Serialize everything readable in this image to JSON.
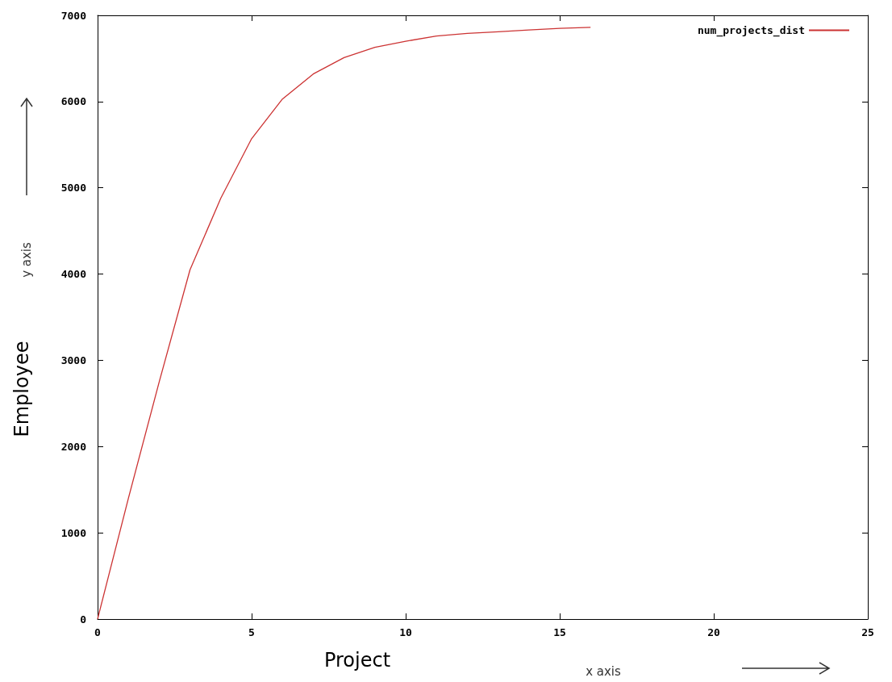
{
  "chart_data": {
    "type": "line",
    "xlabel": "Project",
    "ylabel": "Employee",
    "annotations": [
      "x axis",
      "y axis"
    ],
    "x": [
      0,
      1,
      2,
      3,
      4,
      5,
      6,
      7,
      8,
      9,
      10,
      11,
      12,
      13,
      14,
      15,
      16
    ],
    "series": [
      {
        "name": "num_projects_dist",
        "color": "#cc3333",
        "values": [
          0,
          1400,
          2750,
          4050,
          4880,
          5570,
          6030,
          6320,
          6510,
          6630,
          6700,
          6760,
          6790,
          6810,
          6830,
          6850,
          6860
        ]
      }
    ],
    "xlim": [
      0,
      25
    ],
    "xticks": [
      0,
      5,
      10,
      15,
      20,
      25
    ],
    "ylim": [
      0,
      7000
    ],
    "yticks": [
      0,
      1000,
      2000,
      3000,
      4000,
      5000,
      6000,
      7000
    ],
    "grid": false,
    "legend": "top right",
    "marker": "none",
    "line_style": "solid"
  }
}
